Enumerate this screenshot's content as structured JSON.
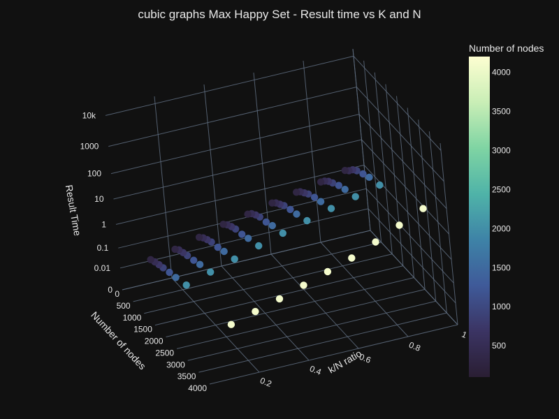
{
  "chart_data": {
    "type": "scatter",
    "title": "cubic graphs Max Happy Set - Result time vs K and N",
    "zlabel": "Result Time",
    "xlabel": "Number of nodes",
    "ylabel": "k/N ratio",
    "z_scale": "log",
    "z_ticks": [
      "0",
      "0.01",
      "0.1",
      "1",
      "10",
      "100",
      "1000",
      "10k"
    ],
    "n_ticks": [
      "0",
      "500",
      "1000",
      "1500",
      "2000",
      "2500",
      "3000",
      "3500",
      "4000"
    ],
    "k_ticks": [
      "0.2",
      "0.4",
      "0.6",
      "0.8",
      "1"
    ],
    "colorbar": {
      "title": "Number of nodes",
      "ticks": [
        "500",
        "1000",
        "1500",
        "2000",
        "2500",
        "3000",
        "3500",
        "4000"
      ],
      "min": 100,
      "max": 4200,
      "colors": [
        "#2a1e33",
        "#3b3463",
        "#3f5a99",
        "#3e83a7",
        "#4fb3a8",
        "#7fd4a3",
        "#c9eeb6",
        "#fdfed1"
      ]
    },
    "series": [
      {
        "points": [
          {
            "n": 300,
            "k": 0.1,
            "t": 0.03
          },
          {
            "n": 300,
            "k": 0.2,
            "t": 0.05
          },
          {
            "n": 300,
            "k": 0.3,
            "t": 0.1
          },
          {
            "n": 300,
            "k": 0.4,
            "t": 0.2
          },
          {
            "n": 300,
            "k": 0.5,
            "t": 0.3
          },
          {
            "n": 300,
            "k": 0.6,
            "t": 0.5
          },
          {
            "n": 300,
            "k": 0.7,
            "t": 0.8
          },
          {
            "n": 300,
            "k": 0.8,
            "t": 1.2
          },
          {
            "n": 300,
            "k": 0.9,
            "t": 2
          },
          {
            "n": 500,
            "k": 0.1,
            "t": 0.04
          },
          {
            "n": 500,
            "k": 0.2,
            "t": 0.08
          },
          {
            "n": 500,
            "k": 0.3,
            "t": 0.15
          },
          {
            "n": 500,
            "k": 0.4,
            "t": 0.3
          },
          {
            "n": 500,
            "k": 0.5,
            "t": 0.5
          },
          {
            "n": 500,
            "k": 0.6,
            "t": 0.8
          },
          {
            "n": 500,
            "k": 0.7,
            "t": 1.3
          },
          {
            "n": 500,
            "k": 0.8,
            "t": 2
          },
          {
            "n": 500,
            "k": 0.9,
            "t": 3
          },
          {
            "n": 700,
            "k": 0.1,
            "t": 0.05
          },
          {
            "n": 700,
            "k": 0.2,
            "t": 0.1
          },
          {
            "n": 700,
            "k": 0.3,
            "t": 0.2
          },
          {
            "n": 700,
            "k": 0.4,
            "t": 0.4
          },
          {
            "n": 700,
            "k": 0.5,
            "t": 0.7
          },
          {
            "n": 700,
            "k": 0.6,
            "t": 1.1
          },
          {
            "n": 700,
            "k": 0.7,
            "t": 1.8
          },
          {
            "n": 700,
            "k": 0.8,
            "t": 3
          },
          {
            "n": 700,
            "k": 0.9,
            "t": 5
          },
          {
            "n": 900,
            "k": 0.1,
            "t": 0.06
          },
          {
            "n": 900,
            "k": 0.2,
            "t": 0.12
          },
          {
            "n": 900,
            "k": 0.3,
            "t": 0.25
          },
          {
            "n": 900,
            "k": 0.4,
            "t": 0.5
          },
          {
            "n": 900,
            "k": 0.5,
            "t": 0.9
          },
          {
            "n": 900,
            "k": 0.6,
            "t": 1.5
          },
          {
            "n": 900,
            "k": 0.7,
            "t": 2.5
          },
          {
            "n": 900,
            "k": 0.8,
            "t": 4
          },
          {
            "n": 900,
            "k": 0.9,
            "t": 7
          },
          {
            "n": 1200,
            "k": 0.1,
            "t": 0.08
          },
          {
            "n": 1200,
            "k": 0.2,
            "t": 0.15
          },
          {
            "n": 1200,
            "k": 0.3,
            "t": 0.3
          },
          {
            "n": 1200,
            "k": 0.4,
            "t": 0.6
          },
          {
            "n": 1200,
            "k": 0.5,
            "t": 1.1
          },
          {
            "n": 1200,
            "k": 0.6,
            "t": 2
          },
          {
            "n": 1200,
            "k": 0.7,
            "t": 3.5
          },
          {
            "n": 1200,
            "k": 0.8,
            "t": 6
          },
          {
            "n": 1200,
            "k": 0.9,
            "t": 10
          },
          {
            "n": 1500,
            "k": 0.1,
            "t": 0.1
          },
          {
            "n": 1500,
            "k": 0.2,
            "t": 0.2
          },
          {
            "n": 1500,
            "k": 0.3,
            "t": 0.4
          },
          {
            "n": 1500,
            "k": 0.4,
            "t": 0.8
          },
          {
            "n": 1500,
            "k": 0.5,
            "t": 1.5
          },
          {
            "n": 1500,
            "k": 0.6,
            "t": 2.5
          },
          {
            "n": 1500,
            "k": 0.7,
            "t": 4.5
          },
          {
            "n": 1500,
            "k": 0.8,
            "t": 8
          },
          {
            "n": 1500,
            "k": 0.9,
            "t": 14
          },
          {
            "n": 2000,
            "k": 0.1,
            "t": 0.15
          },
          {
            "n": 2000,
            "k": 0.2,
            "t": 0.3
          },
          {
            "n": 2000,
            "k": 0.3,
            "t": 0.6
          },
          {
            "n": 2000,
            "k": 0.4,
            "t": 1.2
          },
          {
            "n": 2000,
            "k": 0.5,
            "t": 2.2
          },
          {
            "n": 2000,
            "k": 0.6,
            "t": 4
          },
          {
            "n": 2000,
            "k": 0.7,
            "t": 7
          },
          {
            "n": 2000,
            "k": 0.8,
            "t": 12
          },
          {
            "n": 2000,
            "k": 0.9,
            "t": 20
          },
          {
            "n": 4100,
            "k": 0.1,
            "t": 0.4
          },
          {
            "n": 4100,
            "k": 0.2,
            "t": 0.8
          },
          {
            "n": 4100,
            "k": 0.3,
            "t": 1.5
          },
          {
            "n": 4100,
            "k": 0.4,
            "t": 3
          },
          {
            "n": 4100,
            "k": 0.5,
            "t": 6
          },
          {
            "n": 4100,
            "k": 0.6,
            "t": 12
          },
          {
            "n": 4100,
            "k": 0.7,
            "t": 30
          },
          {
            "n": 4100,
            "k": 0.8,
            "t": 80
          },
          {
            "n": 4100,
            "k": 0.9,
            "t": 200
          }
        ]
      }
    ]
  }
}
